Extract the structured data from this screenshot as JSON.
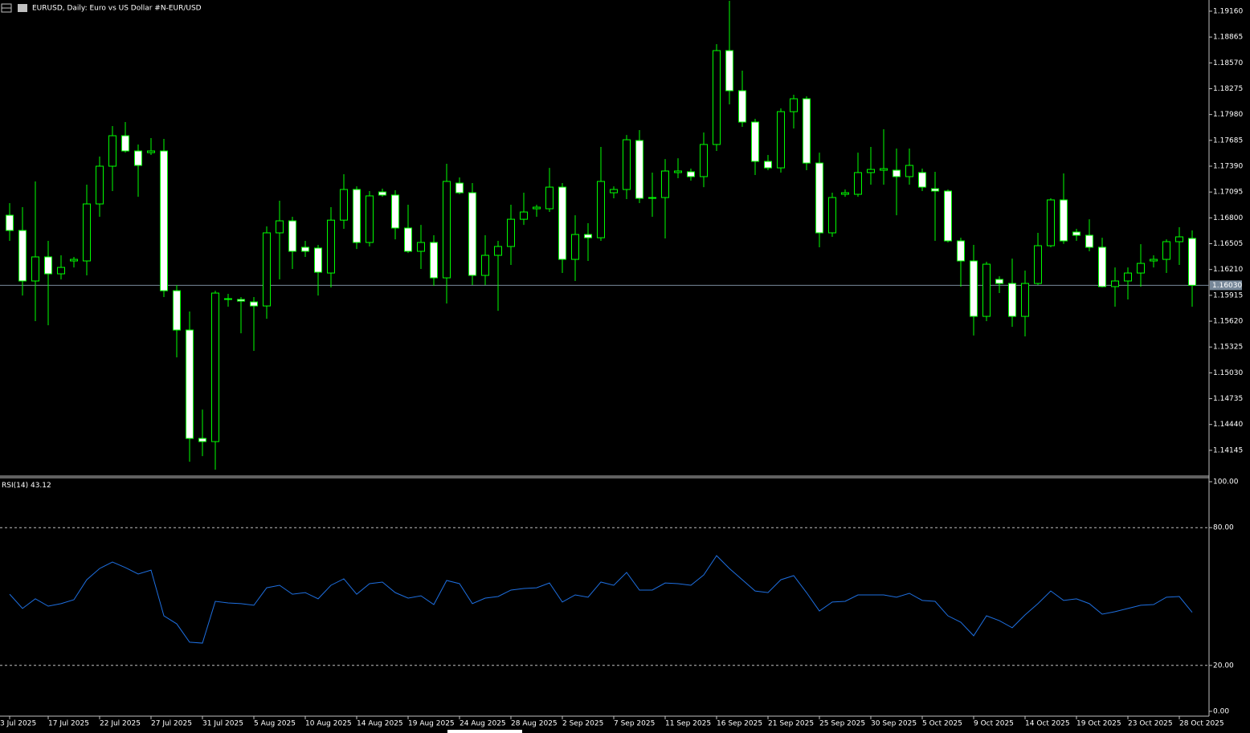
{
  "chart_data": [
    {
      "type": "candlestick",
      "title": "EURUSD, Daily:  Euro vs US Dollar #N-EUR/USD",
      "categories": [
        "3 Jul 2025",
        null,
        null,
        "17 Jul 2025",
        null,
        null,
        null,
        "22 Jul 2025",
        null,
        null,
        null,
        "27 Jul 2025",
        null,
        null,
        null,
        "31 Jul 2025",
        null,
        null,
        null,
        "5 Aug 2025",
        null,
        null,
        null,
        "10 Aug 2025",
        null,
        null,
        null,
        "14 Aug 2025",
        null,
        null,
        null,
        "19 Aug 2025",
        null,
        null,
        null,
        "24 Aug 2025",
        null,
        null,
        null,
        "28 Aug 2025",
        null,
        null,
        null,
        "2 Sep 2025",
        null,
        null,
        null,
        "7 Sep 2025",
        null,
        null,
        null,
        "11 Sep 2025",
        null,
        null,
        null,
        "16 Sep 2025",
        null,
        null,
        null,
        "21 Sep 2025",
        null,
        null,
        null,
        "25 Sep 2025",
        null,
        null,
        null,
        "30 Sep 2025",
        null,
        null,
        null,
        "5 Oct 2025",
        null,
        null,
        null,
        "9 Oct 2025",
        null,
        null,
        null,
        "14 Oct 2025",
        null,
        null,
        null,
        "19 Oct 2025",
        null,
        null,
        null,
        "23 Oct 2025",
        null,
        null,
        null,
        "28 Oct 2025",
        null
      ],
      "open": [
        1.1683,
        1.16656,
        1.16079,
        1.16354,
        1.16161,
        1.16308,
        1.16308,
        1.16959,
        1.1739,
        1.17738,
        1.17564,
        1.17545,
        1.17564,
        1.15968,
        1.15519,
        1.14281,
        1.14245,
        1.15868,
        1.15868,
        1.1584,
        1.15794,
        1.16629,
        1.16766,
        1.16464,
        1.16455,
        1.1617,
        1.16774,
        1.17124,
        1.16519,
        1.17096,
        1.1706,
        1.16684,
        1.16418,
        1.16519,
        1.16115,
        1.17197,
        1.17087,
        1.16143,
        1.16372,
        1.16473,
        1.16784,
        1.16904,
        1.16904,
        1.17151,
        1.16326,
        1.1661,
        1.16573,
        1.17087,
        1.17124,
        1.17683,
        1.17023,
        1.17032,
        1.17317,
        1.17326,
        1.17271,
        1.17638,
        1.1871,
        1.18252,
        1.17894,
        1.17445,
        1.17371,
        1.18013,
        1.1816,
        1.17426,
        1.16629,
        1.17069,
        1.17069,
        1.17317,
        1.17344,
        1.17344,
        1.17271,
        1.17317,
        1.17133,
        1.17106,
        1.16537,
        1.16308,
        1.15675,
        1.16097,
        1.16051,
        1.15675,
        1.16051,
        1.16482,
        1.17005,
        1.16638,
        1.16601,
        1.16464,
        1.16015,
        1.16079,
        1.1617,
        1.16308,
        1.16326,
        1.16528,
        1.16565
      ],
      "high": [
        1.16968,
        1.16922,
        1.17216,
        1.16537,
        1.16372,
        1.16354,
        1.17179,
        1.175,
        1.17848,
        1.17894,
        1.17638,
        1.17711,
        1.17702,
        1.16033,
        1.1573,
        1.14611,
        1.15968,
        1.15932,
        1.15895,
        1.15895,
        1.16702,
        1.16996,
        1.16812,
        1.16537,
        1.16491,
        1.16922,
        1.17298,
        1.1716,
        1.17106,
        1.17133,
        1.17115,
        1.1695,
        1.1672,
        1.16601,
        1.17417,
        1.17262,
        1.17197,
        1.16601,
        1.16537,
        1.1695,
        1.17087,
        1.1695,
        1.17371,
        1.17197,
        1.1683,
        1.16739,
        1.1761,
        1.1716,
        1.17747,
        1.17803,
        1.17317,
        1.17471,
        1.17481,
        1.17362,
        1.17775,
        1.18784,
        1.19279,
        1.18481,
        1.17931,
        1.17518,
        1.1805,
        1.18206,
        1.18188,
        1.17545,
        1.17087,
        1.17124,
        1.17545,
        1.1761,
        1.17812,
        1.17592,
        1.17592,
        1.17362,
        1.17326,
        1.17124,
        1.16573,
        1.16491,
        1.16299,
        1.16133,
        1.16335,
        1.16198,
        1.16629,
        1.17023,
        1.17307,
        1.16675,
        1.16784,
        1.16573,
        1.16234,
        1.16234,
        1.165,
        1.16372,
        1.16555,
        1.16693,
        1.16656
      ],
      "low": [
        1.16537,
        1.15913,
        1.1562,
        1.15574,
        1.16097,
        1.16234,
        1.16143,
        1.16812,
        1.17106,
        1.17545,
        1.17041,
        1.17518,
        1.15895,
        1.15207,
        1.14015,
        1.14079,
        1.13924,
        1.15785,
        1.15482,
        1.15281,
        1.15648,
        1.16097,
        1.16216,
        1.16354,
        1.15913,
        1.16005,
        1.16675,
        1.16445,
        1.16473,
        1.17041,
        1.16555,
        1.16399,
        1.16216,
        1.16024,
        1.15822,
        1.17069,
        1.16033,
        1.16033,
        1.15739,
        1.16262,
        1.1672,
        1.16812,
        1.16867,
        1.1617,
        1.16079,
        1.16308,
        1.16537,
        1.17023,
        1.17014,
        1.16968,
        1.16812,
        1.16565,
        1.17252,
        1.17225,
        1.17151,
        1.17564,
        1.18096,
        1.17839,
        1.17289,
        1.17344,
        1.17317,
        1.17821,
        1.17344,
        1.16464,
        1.16583,
        1.17041,
        1.17041,
        1.17179,
        1.17179,
        1.1683,
        1.17179,
        1.17106,
        1.16537,
        1.16519,
        1.16015,
        1.15457,
        1.1562,
        1.15941,
        1.15556,
        1.15446,
        1.16033,
        1.16464,
        1.16503,
        1.16537,
        1.16418,
        1.16005,
        1.15785,
        1.15868,
        1.16015,
        1.16234,
        1.1617,
        1.16262,
        1.15785
      ],
      "close": [
        1.16656,
        1.16079,
        1.16354,
        1.16161,
        1.16234,
        1.16326,
        1.16959,
        1.1739,
        1.17738,
        1.17564,
        1.17399,
        1.17564,
        1.15968,
        1.15519,
        1.14281,
        1.14245,
        1.15941,
        1.15877,
        1.15849,
        1.15794,
        1.16629,
        1.16766,
        1.16418,
        1.16418,
        1.16179,
        1.16774,
        1.17124,
        1.16519,
        1.17051,
        1.1706,
        1.16684,
        1.16418,
        1.16519,
        1.16115,
        1.17216,
        1.17087,
        1.16143,
        1.16372,
        1.16473,
        1.16784,
        1.16867,
        1.16922,
        1.17151,
        1.16326,
        1.1661,
        1.16573,
        1.17216,
        1.17124,
        1.17692,
        1.17023,
        1.17032,
        1.17335,
        1.17335,
        1.17271,
        1.17638,
        1.1871,
        1.18252,
        1.17894,
        1.17445,
        1.17371,
        1.18013,
        1.1816,
        1.17426,
        1.16629,
        1.17032,
        1.17087,
        1.17317,
        1.17353,
        1.17362,
        1.17271,
        1.17399,
        1.17151,
        1.17106,
        1.16537,
        1.16308,
        1.15675,
        1.16271,
        1.16051,
        1.15675,
        1.16051,
        1.16482,
        1.17005,
        1.16537,
        1.16601,
        1.16464,
        1.16015,
        1.16079,
        1.1617,
        1.1628,
        1.16326,
        1.16528,
        1.16583,
        1.1603
      ],
      "ylim": [
        1.1386,
        1.19288
      ],
      "yticks": [
        {
          "value": 1.1916,
          "label": "1.19160"
        },
        1.18865,
        {
          "value": 1.1857,
          "label": "1.18570"
        },
        1.18275,
        {
          "value": 1.1798,
          "label": "1.17980"
        },
        1.17685,
        {
          "value": 1.1739,
          "label": "1.17390"
        },
        1.17095,
        {
          "value": 1.168,
          "label": "1.16800"
        },
        1.16505,
        {
          "value": 1.1621,
          "label": "1.16210"
        },
        1.15915,
        {
          "value": 1.1562,
          "label": "1.15620"
        },
        1.15325,
        {
          "value": 1.1503,
          "label": "1.15030"
        },
        1.14735,
        {
          "value": 1.1444,
          "label": "1.14440"
        },
        1.14145
      ],
      "current_price": {
        "value": 1.1603,
        "label": "1.16030"
      },
      "bull_color": "#000000",
      "bear_color": "#ffffff",
      "wick_color": "#00ff00",
      "price_line_color": "#778899"
    },
    {
      "type": "line",
      "title": "RSI(14)",
      "color": "#1e6fe0",
      "values": [
        51.0,
        44.8,
        49.0,
        45.8,
        46.9,
        48.6,
        57.3,
        62.2,
        65.0,
        62.6,
        59.8,
        61.5,
        41.6,
        38.1,
        30.1,
        29.7,
        47.9,
        47.2,
        46.9,
        46.2,
        53.8,
        54.9,
        51.0,
        51.7,
        49.0,
        54.9,
        57.7,
        51.0,
        55.6,
        56.3,
        51.7,
        49.3,
        50.3,
        46.5,
        57.0,
        55.6,
        46.9,
        49.3,
        50.0,
        52.8,
        53.5,
        53.8,
        55.9,
        47.6,
        50.7,
        49.7,
        56.3,
        54.9,
        60.5,
        52.8,
        52.8,
        55.9,
        55.6,
        54.9,
        59.4,
        67.8,
        62.2,
        57.3,
        52.4,
        51.7,
        57.3,
        59.1,
        51.7,
        43.7,
        47.6,
        47.9,
        50.7,
        50.7,
        50.7,
        49.7,
        51.4,
        48.3,
        47.9,
        41.6,
        38.8,
        32.9,
        41.6,
        39.5,
        36.4,
        42.0,
        46.9,
        52.4,
        48.3,
        49.0,
        46.9,
        42.3,
        43.4,
        44.8,
        46.2,
        46.5,
        49.7,
        50.0,
        43.12
      ],
      "ylim": [
        0,
        100
      ],
      "yticks": [
        {
          "value": 100,
          "label": "100.00"
        },
        {
          "value": 80,
          "label": "80.00"
        },
        {
          "value": 20,
          "label": "20.00"
        },
        {
          "value": 0,
          "label": "0.00"
        }
      ]
    }
  ]
}
